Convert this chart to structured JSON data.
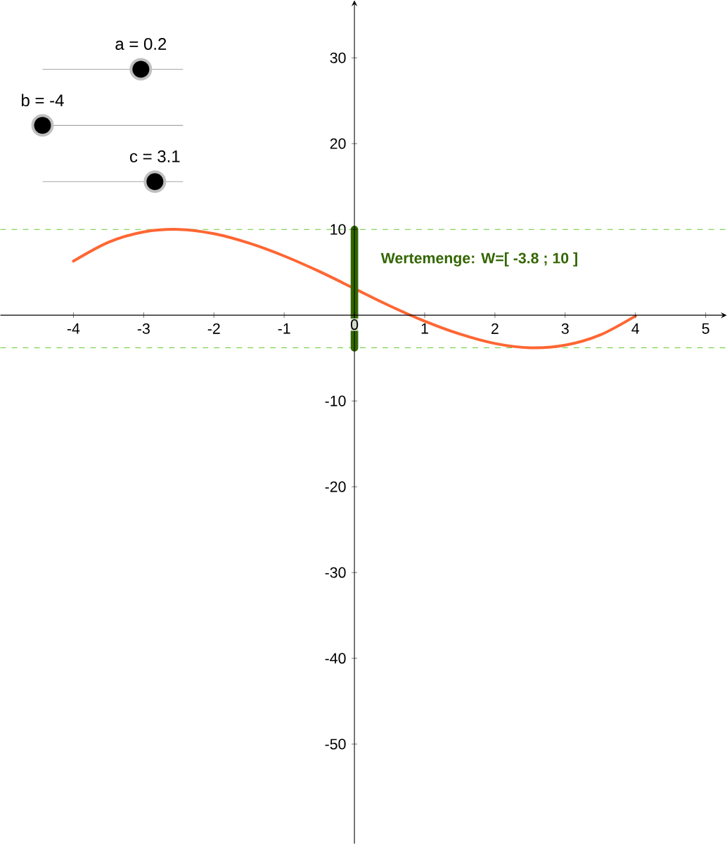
{
  "chart_data": {
    "type": "line",
    "annotations": [
      "a = 0.2",
      "b = -4",
      "c = 3.1",
      "Wertemenge: W=[ -3.8 ; 10 ]"
    ],
    "series": [
      {
        "color": "#ff6633",
        "x": [
          -4,
          -3.5,
          -3,
          -2.5,
          -2,
          -1.5,
          -1,
          -0.5,
          0,
          0.5,
          1,
          1.5,
          2,
          2.5,
          3,
          3.5,
          4
        ],
        "values": [
          6.3,
          8.5,
          9.7,
          10,
          9.5,
          8.4,
          6.9,
          5.1,
          3.1,
          1.1,
          -0.7,
          -2.2,
          -3.3,
          -3.8,
          -3.5,
          -2.3,
          -0.1
        ]
      },
      {
        "color": "#336600",
        "x": [
          0,
          0
        ],
        "values": [
          -3.8,
          10
        ]
      }
    ],
    "ref_lines": [
      {
        "axis": "y",
        "value": 10,
        "color": "#66cc33",
        "line_style": "dashed"
      },
      {
        "axis": "y",
        "value": -3.8,
        "color": "#66cc33",
        "line_style": "dashed"
      }
    ],
    "xlim": [
      -5.04,
      5.3
    ],
    "ylim": [
      -61.6,
      36.7
    ],
    "xticks": [
      -4,
      -3,
      -2,
      -1,
      0,
      1,
      2,
      3,
      4,
      5
    ],
    "yticks": [
      -50,
      -40,
      -30,
      -20,
      -10,
      10,
      20,
      30
    ],
    "grid": false
  }
}
